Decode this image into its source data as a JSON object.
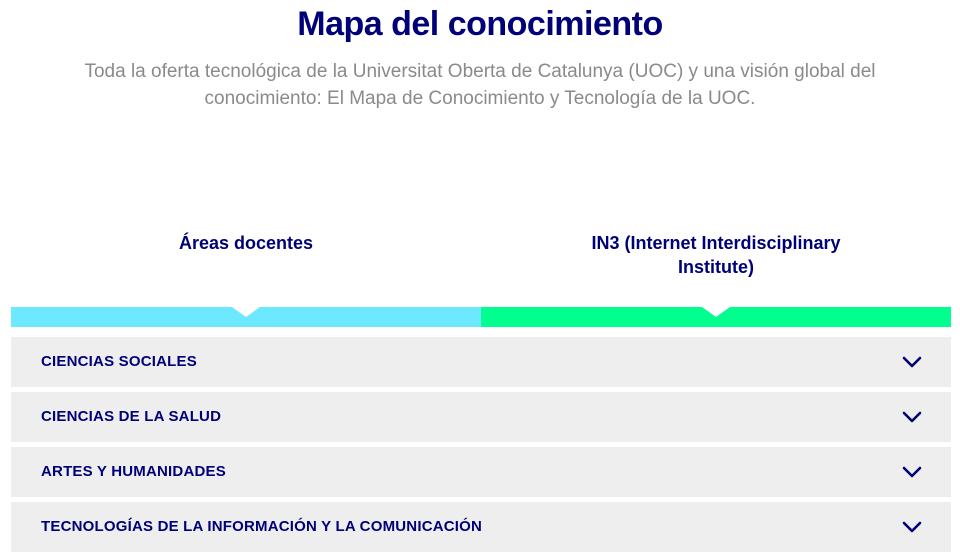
{
  "header": {
    "title": "Mapa del conocimiento",
    "subtitle": "Toda la oferta tecnológica de la Universitat Oberta de Catalunya (UOC) y una visión global del conocimiento: El Mapa de Conocimiento y Tecnología de la UOC."
  },
  "tabs": [
    {
      "label": "Áreas docentes",
      "color": "#6ce8ff"
    },
    {
      "label": "IN3 (Internet Interdisciplinary Institute)",
      "color": "#00ff8f"
    }
  ],
  "accordion": {
    "items": [
      {
        "label": "CIENCIAS SOCIALES",
        "icon": "chevron-down-icon"
      },
      {
        "label": "CIENCIAS DE LA SALUD",
        "icon": "chevron-down-icon"
      },
      {
        "label": "ARTES Y HUMANIDADES",
        "icon": "chevron-down-icon"
      },
      {
        "label": "TECNOLOGÍAS DE LA INFORMACIÓN Y LA COMUNICACIÓN",
        "icon": "chevron-down-icon"
      }
    ]
  },
  "colors": {
    "brand_navy": "#000078",
    "subtitle_gray": "#8a8a8a",
    "accordion_bg": "#eeeeee"
  }
}
